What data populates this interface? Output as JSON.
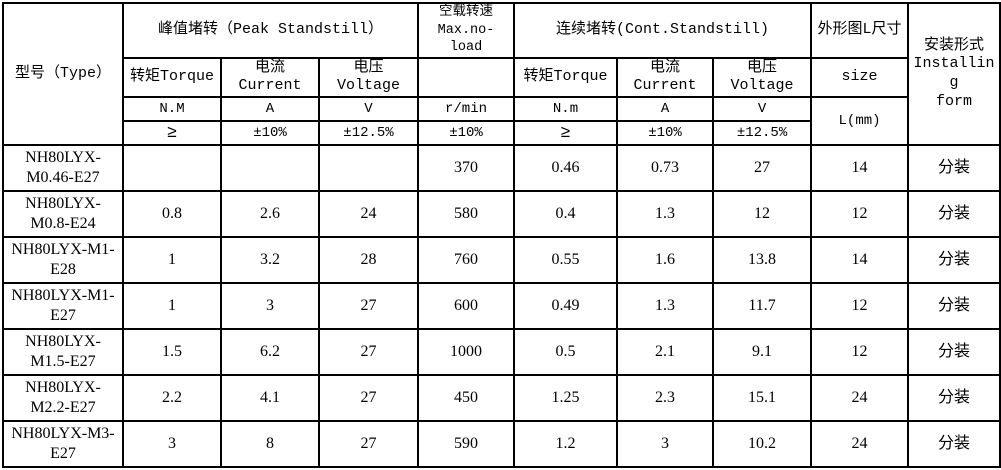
{
  "page": {
    "background": "#ffffff",
    "border_color": "#000000",
    "text_color": "#000000"
  },
  "table": {
    "header": {
      "type_label": "型号（Type）",
      "peak": {
        "title": "峰值堵转（Peak Standstill）",
        "columns": [
          {
            "label": "转矩Torque",
            "unit": "N.M",
            "tolerance": "≥"
          },
          {
            "label": "电流Current",
            "unit": "A",
            "tolerance": "±10%"
          },
          {
            "label": "电压Voltage",
            "unit": "V",
            "tolerance": "±12.5%"
          }
        ]
      },
      "noload": {
        "title": "空载转速",
        "subtitle": "Max.no-load",
        "blank": "",
        "unit": "r/min",
        "tolerance": "±10%"
      },
      "cont": {
        "title": "连续堵转(Cont.Standstill)",
        "columns": [
          {
            "label": "转矩Torque",
            "unit": "N.m",
            "tolerance": "≥"
          },
          {
            "label": "电流Current",
            "unit": "A",
            "tolerance": "±10%"
          },
          {
            "label": "电压Voltage",
            "unit": "V",
            "tolerance": "±12.5%"
          }
        ]
      },
      "size": {
        "title": "外形图L尺寸",
        "label": "size",
        "unit": "L(mm)"
      },
      "installing": {
        "lines": [
          "安装形式",
          "Installing",
          "form"
        ]
      }
    },
    "rows": [
      {
        "model": "NH80LYX-M0.46-E27",
        "peak_torque": "",
        "peak_current": "",
        "peak_voltage": "",
        "noload_speed": "370",
        "cont_torque": "0.46",
        "cont_current": "0.73",
        "cont_voltage": "27",
        "l_size": "14",
        "installing": "分装"
      },
      {
        "model": "NH80LYX-M0.8-E24",
        "peak_torque": "0.8",
        "peak_current": "2.6",
        "peak_voltage": "24",
        "noload_speed": "580",
        "cont_torque": "0.4",
        "cont_current": "1.3",
        "cont_voltage": "12",
        "l_size": "12",
        "installing": "分装"
      },
      {
        "model": "NH80LYX-M1-E28",
        "peak_torque": "1",
        "peak_current": "3.2",
        "peak_voltage": "28",
        "noload_speed": "760",
        "cont_torque": "0.55",
        "cont_current": "1.6",
        "cont_voltage": "13.8",
        "l_size": "14",
        "installing": "分装"
      },
      {
        "model": "NH80LYX-M1-E27",
        "peak_torque": "1",
        "peak_current": "3",
        "peak_voltage": "27",
        "noload_speed": "600",
        "cont_torque": "0.49",
        "cont_current": "1.3",
        "cont_voltage": "11.7",
        "l_size": "12",
        "installing": "分装"
      },
      {
        "model": "NH80LYX-M1.5-E27",
        "peak_torque": "1.5",
        "peak_current": "6.2",
        "peak_voltage": "27",
        "noload_speed": "1000",
        "cont_torque": "0.5",
        "cont_current": "2.1",
        "cont_voltage": "9.1",
        "l_size": "12",
        "installing": "分装"
      },
      {
        "model": "NH80LYX-M2.2-E27",
        "peak_torque": "2.2",
        "peak_current": "4.1",
        "peak_voltage": "27",
        "noload_speed": "450",
        "cont_torque": "1.25",
        "cont_current": "2.3",
        "cont_voltage": "15.1",
        "l_size": "24",
        "installing": "分装"
      },
      {
        "model": "NH80LYX-M3-E27",
        "peak_torque": "3",
        "peak_current": "8",
        "peak_voltage": "27",
        "noload_speed": "590",
        "cont_torque": "1.2",
        "cont_current": "3",
        "cont_voltage": "10.2",
        "l_size": "24",
        "installing": "分装"
      }
    ]
  }
}
